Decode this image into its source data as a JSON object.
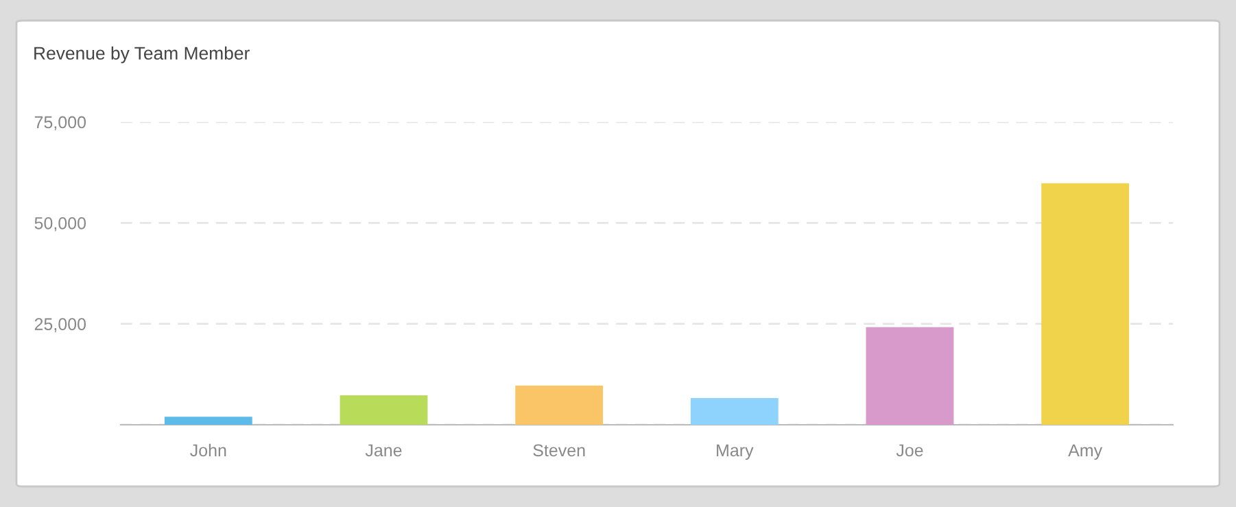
{
  "chart_data": {
    "type": "bar",
    "title": "Revenue by Team Member",
    "categories": [
      "John",
      "Jane",
      "Steven",
      "Mary",
      "Joe",
      "Amy"
    ],
    "values": [
      2000,
      7300,
      9700,
      6600,
      24200,
      59800
    ],
    "colors": [
      "#5dbbea",
      "#b8db5a",
      "#fac566",
      "#8ed3fd",
      "#d899cb",
      "#f1d24b"
    ],
    "ylim": [
      0,
      75000
    ],
    "yticks": [
      {
        "value": 0,
        "label": null
      },
      {
        "value": 25000,
        "label": "25,000"
      },
      {
        "value": 50000,
        "label": "50,000"
      },
      {
        "value": 75000,
        "label": "75,000"
      }
    ],
    "grid": "y"
  }
}
